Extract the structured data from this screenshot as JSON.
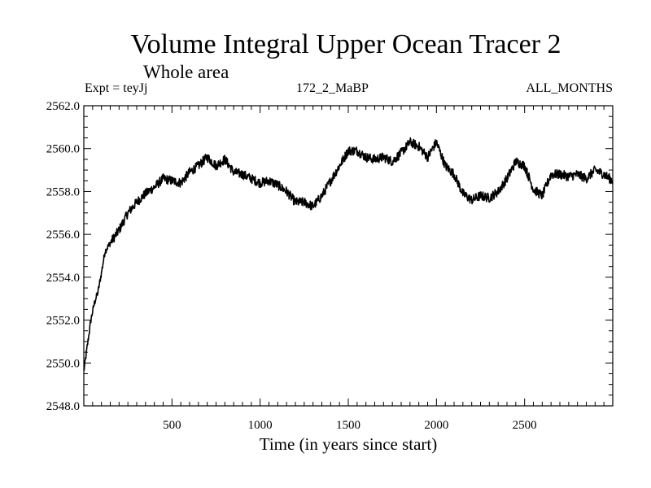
{
  "colors": {
    "background": "#ffffff",
    "foreground": "#000000"
  },
  "header": {
    "title": "Volume Integral Upper Ocean Tracer 2",
    "subtitle": "Whole area",
    "expt_label": "Expt = teyJj",
    "run_label": "172_2_MaBP",
    "months_label": "ALL_MONTHS"
  },
  "chart_data": {
    "type": "line",
    "title": "Volume Integral Upper Ocean Tracer 2",
    "subtitle": "Whole area",
    "xlabel": "Time (in years since start)",
    "ylabel": "",
    "xlim": [
      0,
      3000
    ],
    "ylim": [
      2548.0,
      2562.0
    ],
    "x_ticks": [
      500,
      1000,
      1500,
      2000,
      2500
    ],
    "x_tick_labels": [
      "500",
      "1000",
      "1500",
      "2000",
      "2500"
    ],
    "y_ticks": [
      2548.0,
      2550.0,
      2552.0,
      2554.0,
      2556.0,
      2558.0,
      2560.0,
      2562.0
    ],
    "y_tick_labels": [
      "2548.0",
      "2550.0",
      "2552.0",
      "2554.0",
      "2556.0",
      "2558.0",
      "2560.0",
      "2562.0"
    ],
    "grid": false,
    "series": [
      {
        "name": "Volume Integral Upper Ocean Tracer 2",
        "x": [
          0,
          20,
          40,
          60,
          80,
          100,
          120,
          150,
          200,
          250,
          300,
          350,
          400,
          450,
          500,
          550,
          600,
          650,
          700,
          750,
          800,
          850,
          900,
          950,
          1000,
          1050,
          1100,
          1150,
          1200,
          1250,
          1300,
          1350,
          1400,
          1450,
          1500,
          1550,
          1600,
          1650,
          1700,
          1750,
          1800,
          1850,
          1900,
          1950,
          2000,
          2050,
          2100,
          2150,
          2200,
          2250,
          2300,
          2350,
          2400,
          2450,
          2500,
          2550,
          2600,
          2650,
          2700,
          2750,
          2800,
          2850,
          2900,
          2950,
          3000
        ],
        "values": [
          2549.6,
          2550.8,
          2552.0,
          2552.8,
          2553.3,
          2554.2,
          2555.2,
          2555.6,
          2556.2,
          2557.0,
          2557.5,
          2557.9,
          2558.2,
          2558.6,
          2558.5,
          2558.4,
          2558.9,
          2559.2,
          2559.6,
          2559.2,
          2559.5,
          2558.9,
          2558.8,
          2558.6,
          2558.4,
          2558.5,
          2558.3,
          2558.0,
          2557.5,
          2557.5,
          2557.3,
          2557.8,
          2558.5,
          2559.2,
          2559.9,
          2559.9,
          2559.6,
          2559.5,
          2559.6,
          2559.4,
          2559.8,
          2560.3,
          2560.1,
          2559.6,
          2560.3,
          2559.2,
          2558.8,
          2557.9,
          2557.6,
          2557.8,
          2557.7,
          2558.0,
          2558.6,
          2559.4,
          2559.2,
          2558.1,
          2557.8,
          2558.8,
          2558.8,
          2558.7,
          2558.8,
          2558.6,
          2559.0,
          2558.8,
          2558.5
        ]
      }
    ]
  }
}
